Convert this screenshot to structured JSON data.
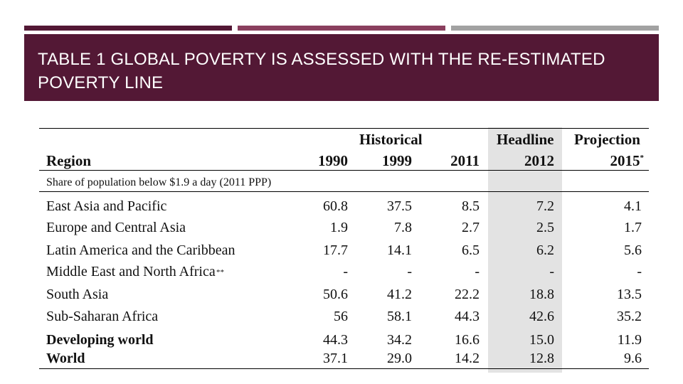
{
  "colors": {
    "banner": "#531835",
    "bar_1": "#531835",
    "bar_2": "#8a3f5e",
    "bar_3": "#a2a2a2",
    "headline_shade": "#e3e3e3"
  },
  "slide": {
    "title_line1": "TABLE 1 GLOBAL POVERTY IS ASSESSED WITH THE RE-ESTIMATED",
    "title_line2": "POVERTY LINE"
  },
  "table": {
    "group_headers": {
      "historical": "Historical",
      "headline": "Headline",
      "projection": "Projection"
    },
    "columns": {
      "region": "Region",
      "y1990": "1990",
      "y1999": "1999",
      "y2011": "2011",
      "y2012": "2012",
      "y2015": "2015",
      "y2015_mark": "*"
    },
    "section_label": "Share of population below $1.9 a day (2011 PPP)",
    "rows": [
      {
        "region": "East Asia and Pacific",
        "mark": "",
        "v1990": "60.8",
        "v1999": "37.5",
        "v2011": "8.5",
        "v2012": "7.2",
        "v2015": "4.1",
        "bold": false
      },
      {
        "region": "Europe and Central Asia",
        "mark": "",
        "v1990": "1.9",
        "v1999": "7.8",
        "v2011": "2.7",
        "v2012": "2.5",
        "v2015": "1.7",
        "bold": false
      },
      {
        "region": "Latin America and the Caribbean",
        "mark": "",
        "v1990": "17.7",
        "v1999": "14.1",
        "v2011": "6.5",
        "v2012": "6.2",
        "v2015": "5.6",
        "bold": false
      },
      {
        "region": "Middle East and North Africa",
        "mark": "**",
        "v1990": "-",
        "v1999": "-",
        "v2011": "-",
        "v2012": "-",
        "v2015": "-",
        "bold": false
      },
      {
        "region": "South Asia",
        "mark": "",
        "v1990": "50.6",
        "v1999": "41.2",
        "v2011": "22.2",
        "v2012": "18.8",
        "v2015": "13.5",
        "bold": false
      },
      {
        "region": "Sub-Saharan Africa",
        "mark": "",
        "v1990": "56",
        "v1999": "58.1",
        "v2011": "44.3",
        "v2012": "42.6",
        "v2015": "35.2",
        "bold": false
      },
      {
        "region": "Developing world",
        "mark": "",
        "v1990": "44.3",
        "v1999": "34.2",
        "v2011": "16.6",
        "v2012": "15.0",
        "v2015": "11.9",
        "bold": true
      },
      {
        "region": "World",
        "mark": "",
        "v1990": "37.1",
        "v1999": "29.0",
        "v2011": "14.2",
        "v2012": "12.8",
        "v2015": "9.6",
        "bold": true
      }
    ]
  }
}
